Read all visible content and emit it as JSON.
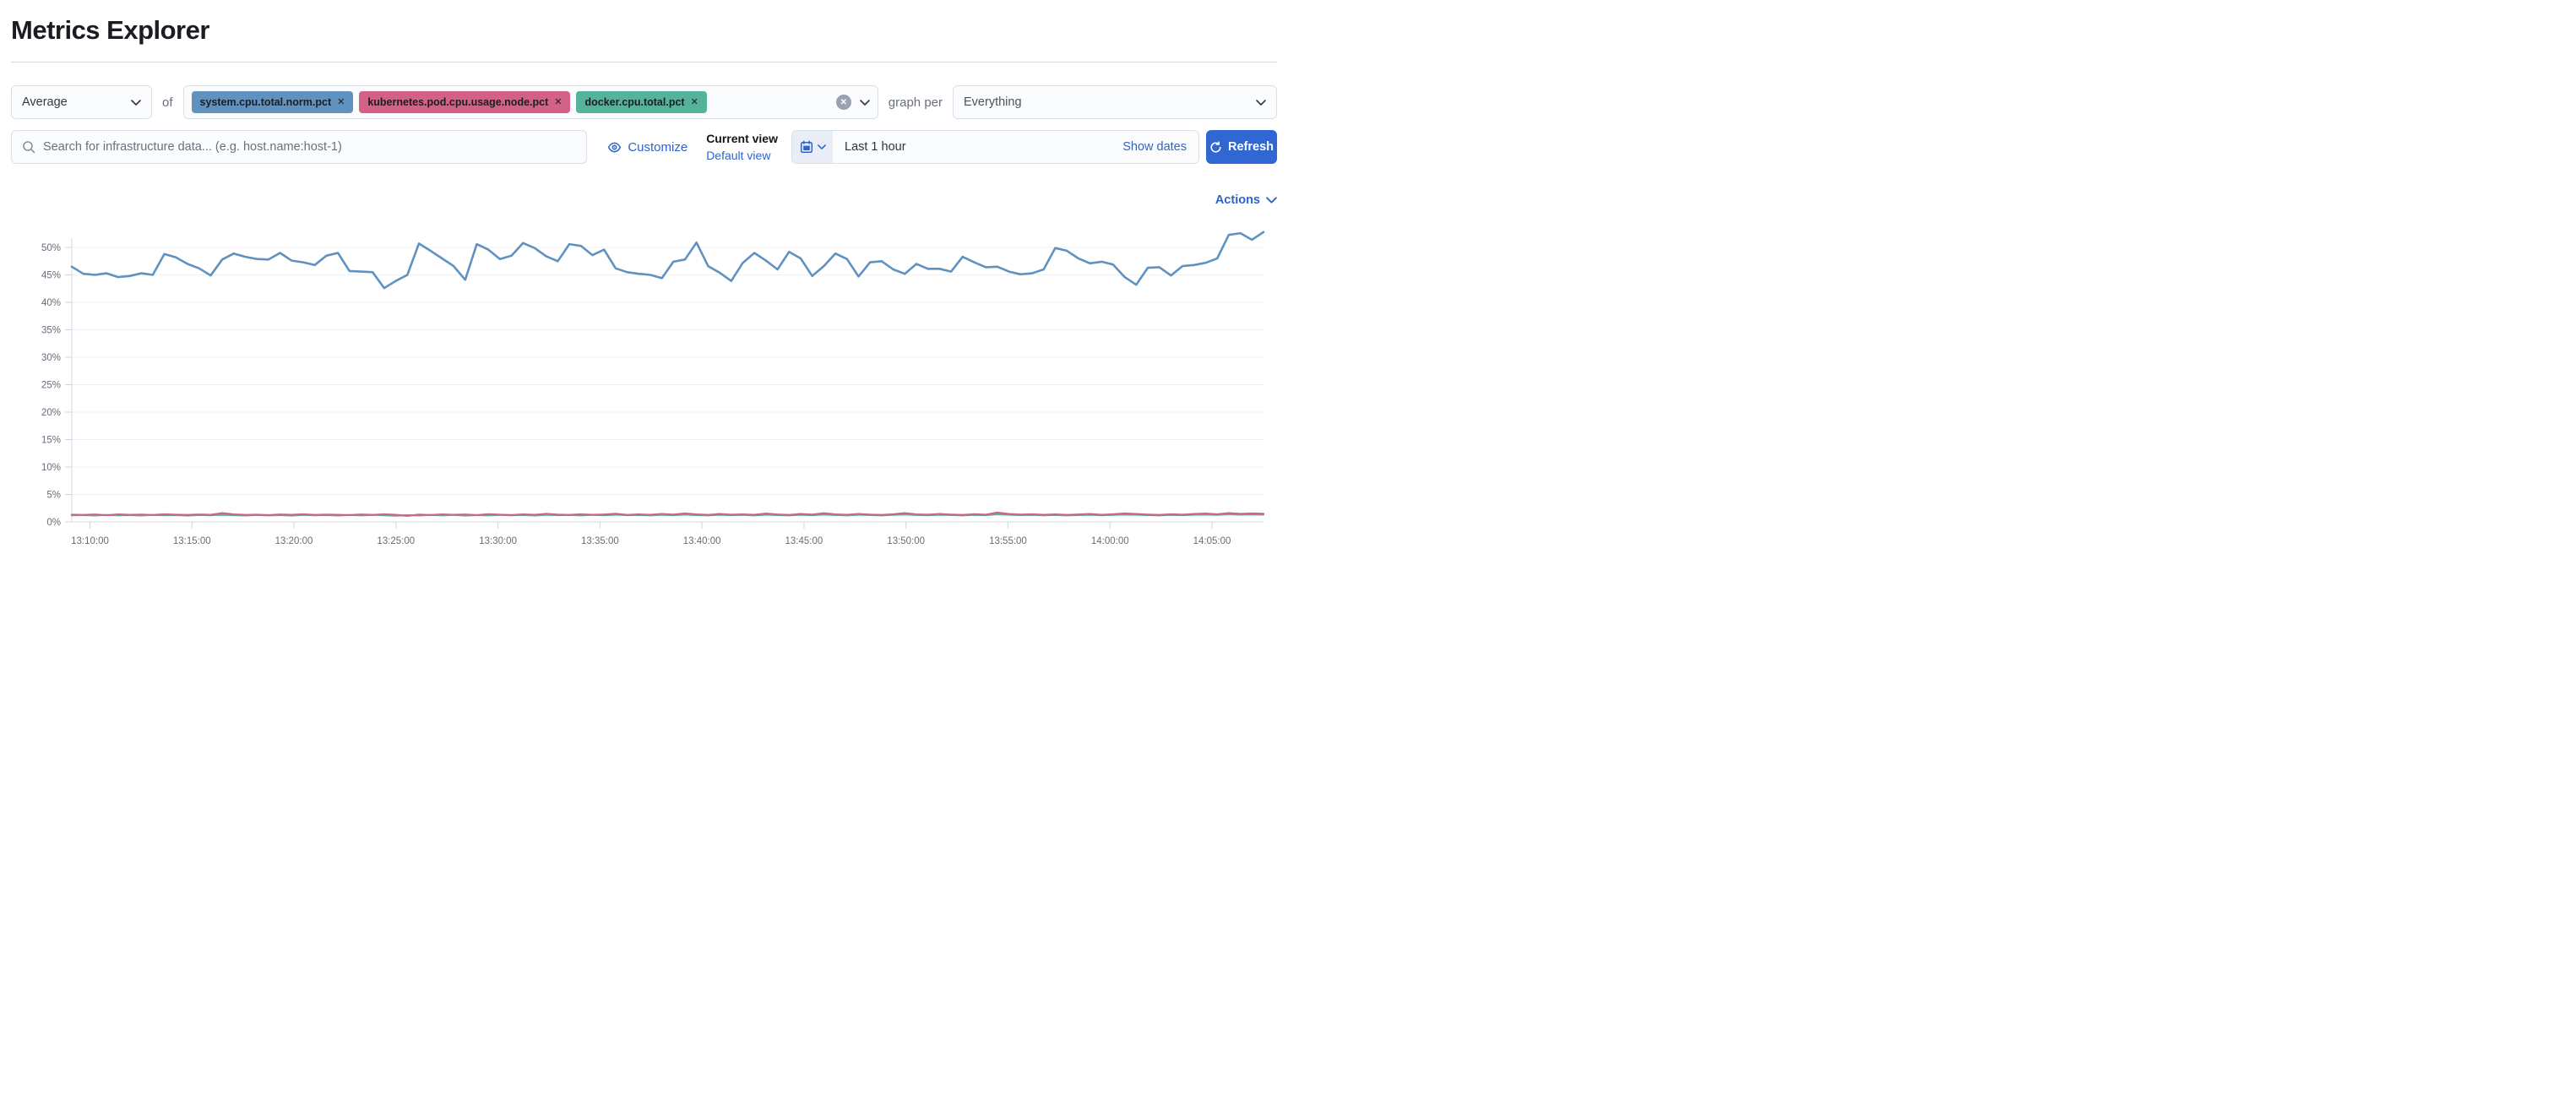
{
  "page": {
    "title": "Metrics Explorer"
  },
  "toolbar": {
    "aggregation": {
      "value": "Average"
    },
    "of_label": "of",
    "metrics": [
      {
        "label": "system.cpu.total.norm.pct",
        "color": "#6092C0"
      },
      {
        "label": "kubernetes.pod.cpu.usage.node.pct",
        "color": "#D36086"
      },
      {
        "label": "docker.cpu.total.pct",
        "color": "#54B399"
      }
    ],
    "remove_glyph": "✕",
    "clear_glyph": "✕",
    "graph_per_label": "graph per",
    "group_by": {
      "value": "Everything"
    }
  },
  "searchbar": {
    "placeholder": "Search for infrastructure data... (e.g. host.name:host-1)",
    "value": ""
  },
  "view_controls": {
    "customize_label": "Customize",
    "current_view_label": "Current view",
    "view_name": "Default view"
  },
  "datepicker": {
    "range_label": "Last 1 hour",
    "show_dates_label": "Show dates",
    "refresh_label": "Refresh"
  },
  "chart": {
    "actions_label": "Actions"
  },
  "chart_data": {
    "type": "line",
    "title": "",
    "xlabel": "",
    "ylabel": "",
    "grid": "horizontal",
    "legend": "none",
    "ylim": [
      0,
      53
    ],
    "y_tick_labels": [
      "0%",
      "5%",
      "10%",
      "15%",
      "20%",
      "25%",
      "30%",
      "35%",
      "40%",
      "45%",
      "50%"
    ],
    "x_tick_labels": [
      "13:10:00",
      "13:15:00",
      "13:20:00",
      "13:25:00",
      "13:30:00",
      "13:35:00",
      "13:40:00",
      "13:45:00",
      "13:50:00",
      "13:55:00",
      "14:00:00",
      "14:05:00"
    ],
    "series": [
      {
        "name": "system.cpu.total.norm.pct",
        "color": "#6092C0",
        "unit": "%",
        "values": [
          46.5,
          45.2,
          45.0,
          45.3,
          44.6,
          44.8,
          45.3,
          45.0,
          48.8,
          48.2,
          47.0,
          46.2,
          44.9,
          47.8,
          48.9,
          48.3,
          47.9,
          47.8,
          49.0,
          47.6,
          47.3,
          46.8,
          48.5,
          49.0,
          45.7,
          45.6,
          45.5,
          42.6,
          43.9,
          45.0,
          50.7,
          49.4,
          48.0,
          46.6,
          44.1,
          50.6,
          49.6,
          47.9,
          48.5,
          50.8,
          49.9,
          48.4,
          47.5,
          50.6,
          50.3,
          48.6,
          49.6,
          46.2,
          45.5,
          45.2,
          45.0,
          44.4,
          47.4,
          47.8,
          50.9,
          46.6,
          45.4,
          43.9,
          47.2,
          49.0,
          47.6,
          46.0,
          49.2,
          48.0,
          44.8,
          46.6,
          48.9,
          47.9,
          44.7,
          47.3,
          47.5,
          46.0,
          45.2,
          47.0,
          46.1,
          46.1,
          45.6,
          48.3,
          47.3,
          46.4,
          46.5,
          45.6,
          45.1,
          45.3,
          46.0,
          49.9,
          49.4,
          48.0,
          47.1,
          47.4,
          46.9,
          44.6,
          43.2,
          46.3,
          46.4,
          44.9,
          46.6,
          46.8,
          47.2,
          48.0,
          52.3,
          52.6,
          51.4,
          52.8
        ]
      },
      {
        "name": "kubernetes.pod.cpu.usage.node.pct",
        "color": "#D36086",
        "unit": "%",
        "values": [
          1.32,
          1.28,
          1.35,
          1.22,
          1.38,
          1.3,
          1.34,
          1.26,
          1.4,
          1.32,
          1.28,
          1.36,
          1.3,
          1.62,
          1.38,
          1.28,
          1.33,
          1.25,
          1.36,
          1.3,
          1.4,
          1.28,
          1.34,
          1.3,
          1.24,
          1.36,
          1.28,
          1.4,
          1.3,
          1.1,
          1.34,
          1.26,
          1.38,
          1.3,
          1.36,
          1.24,
          1.42,
          1.32,
          1.26,
          1.38,
          1.3,
          1.48,
          1.34,
          1.28,
          1.4,
          1.3,
          1.36,
          1.5,
          1.28,
          1.38,
          1.3,
          1.44,
          1.34,
          1.56,
          1.38,
          1.28,
          1.44,
          1.32,
          1.38,
          1.3,
          1.52,
          1.36,
          1.28,
          1.44,
          1.34,
          1.58,
          1.38,
          1.3,
          1.46,
          1.34,
          1.28,
          1.4,
          1.62,
          1.38,
          1.32,
          1.44,
          1.34,
          1.28,
          1.42,
          1.32,
          1.7,
          1.46,
          1.34,
          1.4,
          1.3,
          1.38,
          1.28,
          1.36,
          1.44,
          1.3,
          1.4,
          1.56,
          1.44,
          1.34,
          1.28,
          1.4,
          1.32,
          1.46,
          1.54,
          1.4,
          1.62,
          1.48,
          1.56,
          1.5
        ]
      },
      {
        "name": "docker.cpu.total.pct",
        "color": "#54B399",
        "unit": "%",
        "values": [
          1.2,
          1.24,
          1.15,
          1.28,
          1.18,
          1.24,
          1.16,
          1.28,
          1.2,
          1.24,
          1.14,
          1.26,
          1.2,
          1.3,
          1.22,
          1.16,
          1.26,
          1.18,
          1.24,
          1.14,
          1.28,
          1.2,
          1.24,
          1.16,
          1.26,
          1.18,
          1.28,
          1.2,
          1.12,
          1.24,
          1.16,
          1.26,
          1.18,
          1.28,
          1.14,
          1.24,
          1.18,
          1.28,
          1.2,
          1.26,
          1.16,
          1.3,
          1.22,
          1.26,
          1.18,
          1.28,
          1.2,
          1.32,
          1.22,
          1.26,
          1.18,
          1.3,
          1.22,
          1.34,
          1.24,
          1.18,
          1.3,
          1.22,
          1.28,
          1.18,
          1.32,
          1.24,
          1.18,
          1.3,
          1.22,
          1.34,
          1.26,
          1.18,
          1.3,
          1.24,
          1.18,
          1.28,
          1.36,
          1.26,
          1.2,
          1.3,
          1.24,
          1.18,
          1.28,
          1.22,
          1.38,
          1.3,
          1.24,
          1.28,
          1.2,
          1.26,
          1.18,
          1.24,
          1.3,
          1.2,
          1.28,
          1.34,
          1.3,
          1.24,
          1.18,
          1.28,
          1.22,
          1.3,
          1.34,
          1.28,
          1.38,
          1.32,
          1.36,
          1.32
        ]
      }
    ]
  }
}
